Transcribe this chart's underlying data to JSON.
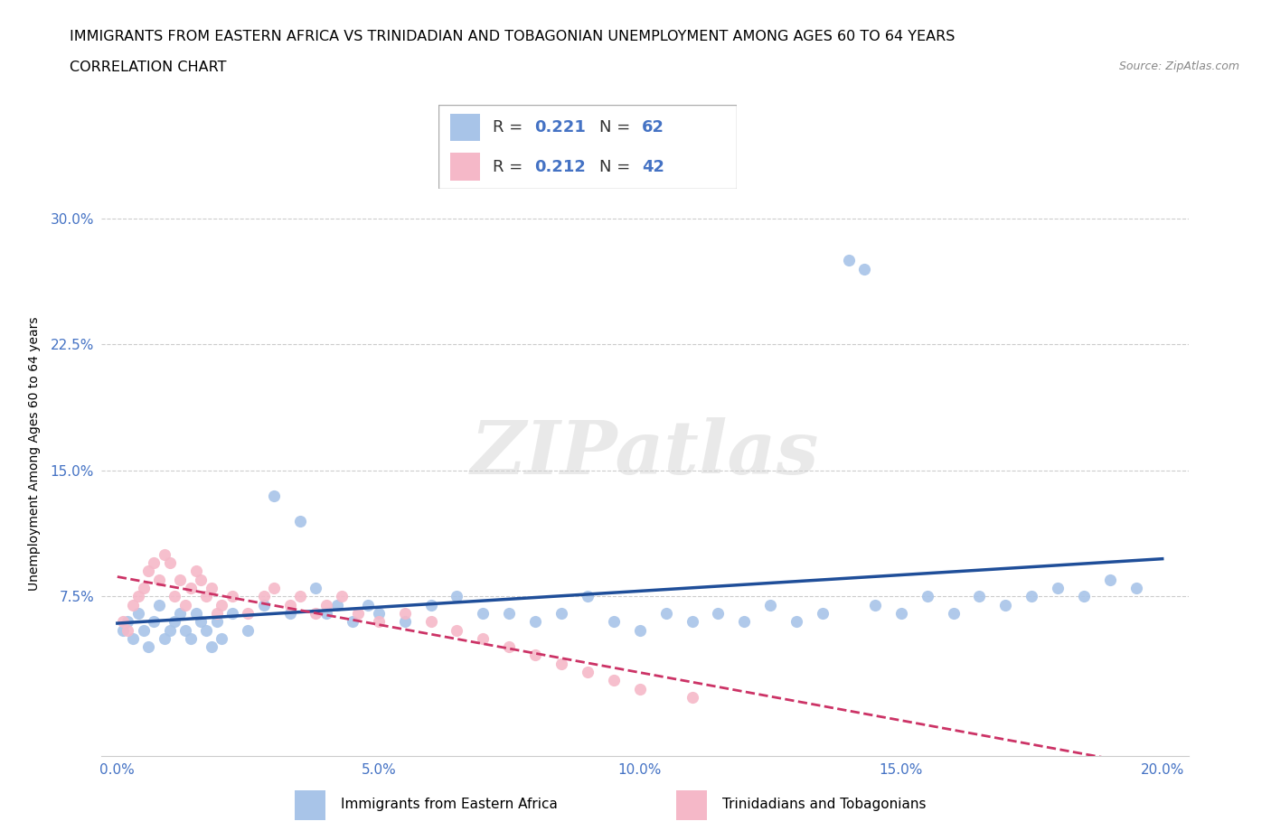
{
  "title": "IMMIGRANTS FROM EASTERN AFRICA VS TRINIDADIAN AND TOBAGONIAN UNEMPLOYMENT AMONG AGES 60 TO 64 YEARS",
  "subtitle": "CORRELATION CHART",
  "source_text": "Source: ZipAtlas.com",
  "ylabel": "Unemployment Among Ages 60 to 64 years",
  "xlim_low": -0.003,
  "xlim_high": 0.205,
  "ylim_low": -0.02,
  "ylim_high": 0.34,
  "xtick_vals": [
    0.0,
    0.05,
    0.1,
    0.15,
    0.2
  ],
  "xtick_labels": [
    "0.0%",
    "5.0%",
    "10.0%",
    "15.0%",
    "20.0%"
  ],
  "ytick_vals": [
    0.075,
    0.15,
    0.225,
    0.3
  ],
  "ytick_labels": [
    "7.5%",
    "15.0%",
    "22.5%",
    "30.0%"
  ],
  "blue_fill": "#a8c4e8",
  "blue_line": "#1f4e99",
  "pink_fill": "#f5b8c8",
  "pink_line": "#cc3366",
  "tick_label_color": "#4472c4",
  "grid_color": "#cccccc",
  "R_blue": 0.221,
  "N_blue": 62,
  "R_pink": 0.212,
  "N_pink": 42,
  "legend_label_blue": "Immigrants from Eastern Africa",
  "legend_label_pink": "Trinidadians and Tobagonians",
  "watermark": "ZIPatlas",
  "title_fontsize": 11.5,
  "subtitle_fontsize": 11.5,
  "tick_fontsize": 11,
  "ylabel_fontsize": 10,
  "blue_x": [
    0.001,
    0.002,
    0.003,
    0.004,
    0.005,
    0.006,
    0.007,
    0.008,
    0.009,
    0.01,
    0.011,
    0.012,
    0.013,
    0.014,
    0.015,
    0.016,
    0.017,
    0.018,
    0.019,
    0.02,
    0.022,
    0.025,
    0.028,
    0.03,
    0.033,
    0.035,
    0.038,
    0.04,
    0.042,
    0.045,
    0.048,
    0.05,
    0.055,
    0.06,
    0.065,
    0.07,
    0.075,
    0.08,
    0.085,
    0.09,
    0.095,
    0.1,
    0.105,
    0.11,
    0.115,
    0.12,
    0.125,
    0.13,
    0.135,
    0.145,
    0.15,
    0.155,
    0.16,
    0.165,
    0.17,
    0.175,
    0.18,
    0.185,
    0.19,
    0.14,
    0.143,
    0.195
  ],
  "blue_y": [
    0.055,
    0.06,
    0.05,
    0.065,
    0.055,
    0.045,
    0.06,
    0.07,
    0.05,
    0.055,
    0.06,
    0.065,
    0.055,
    0.05,
    0.065,
    0.06,
    0.055,
    0.045,
    0.06,
    0.05,
    0.065,
    0.055,
    0.07,
    0.135,
    0.065,
    0.12,
    0.08,
    0.065,
    0.07,
    0.06,
    0.07,
    0.065,
    0.06,
    0.07,
    0.075,
    0.065,
    0.065,
    0.06,
    0.065,
    0.075,
    0.06,
    0.055,
    0.065,
    0.06,
    0.065,
    0.06,
    0.07,
    0.06,
    0.065,
    0.07,
    0.065,
    0.075,
    0.065,
    0.075,
    0.07,
    0.075,
    0.08,
    0.075,
    0.085,
    0.275,
    0.27,
    0.08
  ],
  "pink_x": [
    0.001,
    0.002,
    0.003,
    0.004,
    0.005,
    0.006,
    0.007,
    0.008,
    0.009,
    0.01,
    0.011,
    0.012,
    0.013,
    0.014,
    0.015,
    0.016,
    0.017,
    0.018,
    0.019,
    0.02,
    0.022,
    0.025,
    0.028,
    0.03,
    0.033,
    0.035,
    0.038,
    0.04,
    0.043,
    0.046,
    0.05,
    0.055,
    0.06,
    0.065,
    0.07,
    0.075,
    0.08,
    0.085,
    0.09,
    0.095,
    0.1,
    0.11
  ],
  "pink_y": [
    0.06,
    0.055,
    0.07,
    0.075,
    0.08,
    0.09,
    0.095,
    0.085,
    0.1,
    0.095,
    0.075,
    0.085,
    0.07,
    0.08,
    0.09,
    0.085,
    0.075,
    0.08,
    0.065,
    0.07,
    0.075,
    0.065,
    0.075,
    0.08,
    0.07,
    0.075,
    0.065,
    0.07,
    0.075,
    0.065,
    0.06,
    0.065,
    0.06,
    0.055,
    0.05,
    0.045,
    0.04,
    0.035,
    0.03,
    0.025,
    0.02,
    0.015
  ]
}
